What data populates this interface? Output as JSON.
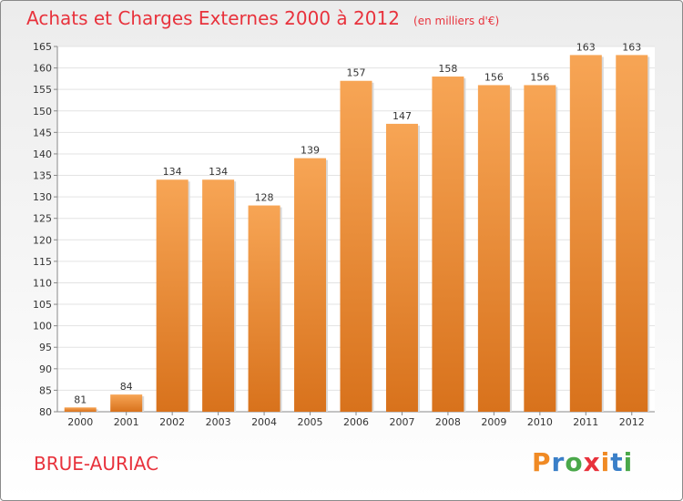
{
  "header": {
    "title": "Achats et Charges Externes 2000 à 2012",
    "unit": "(en milliers d'€)"
  },
  "footer": {
    "commune": "BRUE-AURIAC",
    "logo": "Proxiti",
    "logo_colors": [
      "#f08a24",
      "#3a7fc8",
      "#4aa84a",
      "#e8323c",
      "#f08a24",
      "#3a7fc8",
      "#4aa84a"
    ]
  },
  "chart_data": {
    "type": "bar",
    "title": "Achats et Charges Externes 2000 à 2012",
    "subtitle": "(en milliers d'€)",
    "xlabel": "",
    "ylabel": "",
    "categories": [
      "2000",
      "2001",
      "2002",
      "2003",
      "2004",
      "2005",
      "2006",
      "2007",
      "2008",
      "2009",
      "2010",
      "2011",
      "2012"
    ],
    "values": [
      81,
      84,
      134,
      134,
      128,
      139,
      157,
      147,
      158,
      156,
      156,
      163,
      163
    ],
    "ylim": [
      80,
      165
    ],
    "yticks": [
      80,
      85,
      90,
      95,
      100,
      105,
      110,
      115,
      120,
      125,
      130,
      135,
      140,
      145,
      150,
      155,
      160,
      165
    ],
    "grid": true,
    "legend": "none",
    "bar_color": "#f29b43"
  }
}
